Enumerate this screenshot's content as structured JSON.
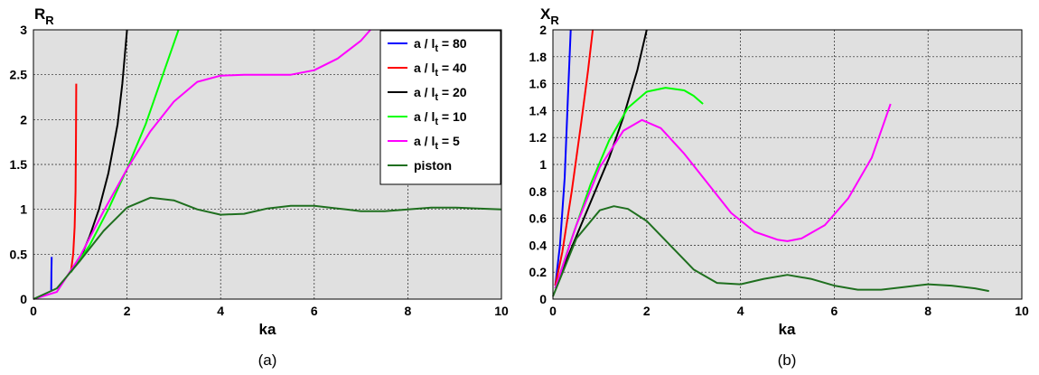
{
  "chart_data": [
    {
      "type": "line",
      "panel_label": "(a)",
      "xlabel": "ka",
      "ylabel_main": "R",
      "ylabel_sub": "R",
      "xlim": [
        0,
        10
      ],
      "ylim": [
        0,
        3
      ],
      "xticks": [
        "0",
        "2",
        "4",
        "6",
        "8",
        "10"
      ],
      "yticks": [
        "0",
        "0.5",
        "1",
        "1.5",
        "2",
        "2.5",
        "3"
      ],
      "grid": true,
      "background": "#e0e0e0",
      "legend": {
        "placement": "top-right",
        "entries": [
          {
            "pre": "a / l",
            "sub": "t",
            "post": " = 80",
            "color": "#0000ff"
          },
          {
            "pre": "a / l",
            "sub": "t",
            "post": " = 40",
            "color": "#ff0000"
          },
          {
            "pre": "a / l",
            "sub": "t",
            "post": " = 20",
            "color": "#000000"
          },
          {
            "pre": "a / l",
            "sub": "t",
            "post": " = 10",
            "color": "#00ff00"
          },
          {
            "pre": "a / l",
            "sub": "t",
            "post": " = 5",
            "color": "#ff00ff"
          },
          {
            "pre": "piston",
            "sub": "",
            "post": "",
            "color": "#1f6f1f"
          }
        ]
      },
      "series": [
        {
          "name": "a / lt = 80",
          "color": "#0000ff",
          "x": [
            0.38,
            0.385,
            0.39
          ],
          "y": [
            0.1,
            0.3,
            0.47
          ]
        },
        {
          "name": "a / lt = 40",
          "color": "#ff0000",
          "x": [
            0.8,
            0.85,
            0.88,
            0.9,
            0.91,
            0.915
          ],
          "y": [
            0.3,
            0.5,
            0.8,
            1.2,
            1.8,
            2.4
          ]
        },
        {
          "name": "a / lt = 20",
          "color": "#000000",
          "x": [
            0.8,
            1.0,
            1.2,
            1.4,
            1.6,
            1.8,
            1.9,
            2.0
          ],
          "y": [
            0.3,
            0.45,
            0.7,
            1.0,
            1.4,
            1.95,
            2.4,
            3.0
          ]
        },
        {
          "name": "a / lt = 10",
          "color": "#00ff00",
          "x": [
            0.8,
            1.2,
            1.6,
            2.0,
            2.4,
            2.8,
            3.1
          ],
          "y": [
            0.3,
            0.6,
            1.0,
            1.45,
            1.95,
            2.55,
            3.0
          ]
        },
        {
          "name": "a / lt = 5",
          "color": "#ff00ff",
          "x": [
            0,
            0.5,
            1.0,
            1.5,
            2.0,
            2.5,
            3.0,
            3.5,
            4.0,
            4.5,
            5.0,
            5.5,
            6.0,
            6.5,
            7.0,
            7.2
          ],
          "y": [
            0,
            0.08,
            0.48,
            0.98,
            1.45,
            1.87,
            2.2,
            2.42,
            2.49,
            2.5,
            2.5,
            2.5,
            2.55,
            2.68,
            2.88,
            3.0
          ]
        },
        {
          "name": "piston",
          "color": "#1f6f1f",
          "x": [
            0,
            0.5,
            1.0,
            1.5,
            2.0,
            2.5,
            3.0,
            3.5,
            4.0,
            4.5,
            5.0,
            5.5,
            6.0,
            6.5,
            7.0,
            7.5,
            8.0,
            8.5,
            9.0,
            9.5,
            10.0
          ],
          "y": [
            0,
            0.12,
            0.43,
            0.76,
            1.02,
            1.13,
            1.1,
            1.0,
            0.94,
            0.95,
            1.01,
            1.04,
            1.04,
            1.01,
            0.98,
            0.98,
            1.0,
            1.02,
            1.02,
            1.01,
            1.0
          ]
        }
      ]
    },
    {
      "type": "line",
      "panel_label": "(b)",
      "xlabel": "ka",
      "ylabel_main": "X",
      "ylabel_sub": "R",
      "xlim": [
        0,
        10
      ],
      "ylim": [
        0,
        2
      ],
      "xticks": [
        "0",
        "2",
        "4",
        "6",
        "8",
        "10"
      ],
      "yticks": [
        "0",
        "0.2",
        "0.4",
        "0.6",
        "0.8",
        "1",
        "1.2",
        "1.4",
        "1.6",
        "1.8",
        "2"
      ],
      "grid": true,
      "background": "#e0e0e0",
      "series": [
        {
          "name": "a / lt = 80",
          "color": "#0000ff",
          "x": [
            0.05,
            0.15,
            0.25,
            0.32,
            0.38
          ],
          "y": [
            0.1,
            0.4,
            0.9,
            1.5,
            2.0
          ]
        },
        {
          "name": "a / lt = 40",
          "color": "#ff0000",
          "x": [
            0.05,
            0.2,
            0.4,
            0.6,
            0.75,
            0.85
          ],
          "y": [
            0.1,
            0.35,
            0.8,
            1.3,
            1.7,
            2.0
          ]
        },
        {
          "name": "a / lt = 20",
          "color": "#000000",
          "x": [
            0.05,
            0.3,
            0.6,
            0.9,
            1.2,
            1.5,
            1.8,
            2.0
          ],
          "y": [
            0.08,
            0.3,
            0.55,
            0.8,
            1.05,
            1.35,
            1.7,
            2.0
          ]
        },
        {
          "name": "a / lt = 10",
          "color": "#00ff00",
          "x": [
            0.05,
            0.4,
            0.8,
            1.2,
            1.6,
            2.0,
            2.4,
            2.8,
            3.0,
            3.2
          ],
          "y": [
            0.08,
            0.45,
            0.85,
            1.18,
            1.42,
            1.54,
            1.57,
            1.55,
            1.51,
            1.45
          ]
        },
        {
          "name": "a / lt = 5",
          "color": "#ff00ff",
          "x": [
            0.05,
            0.5,
            1.0,
            1.5,
            1.9,
            2.3,
            2.8,
            3.3,
            3.8,
            4.3,
            4.8,
            5.0,
            5.3,
            5.8,
            6.3,
            6.8,
            7.0,
            7.2
          ],
          "y": [
            0.08,
            0.55,
            0.98,
            1.25,
            1.33,
            1.27,
            1.08,
            0.86,
            0.64,
            0.5,
            0.44,
            0.43,
            0.45,
            0.55,
            0.75,
            1.05,
            1.25,
            1.45
          ]
        },
        {
          "name": "piston",
          "color": "#1f6f1f",
          "x": [
            0,
            0.5,
            1.0,
            1.3,
            1.6,
            2.0,
            2.5,
            3.0,
            3.5,
            4.0,
            4.5,
            5.0,
            5.5,
            6.0,
            6.5,
            7.0,
            7.5,
            8.0,
            8.5,
            9.0,
            9.3
          ],
          "y": [
            0.02,
            0.45,
            0.66,
            0.69,
            0.67,
            0.58,
            0.4,
            0.22,
            0.12,
            0.11,
            0.15,
            0.18,
            0.15,
            0.1,
            0.07,
            0.07,
            0.09,
            0.11,
            0.1,
            0.08,
            0.06
          ]
        }
      ]
    }
  ]
}
